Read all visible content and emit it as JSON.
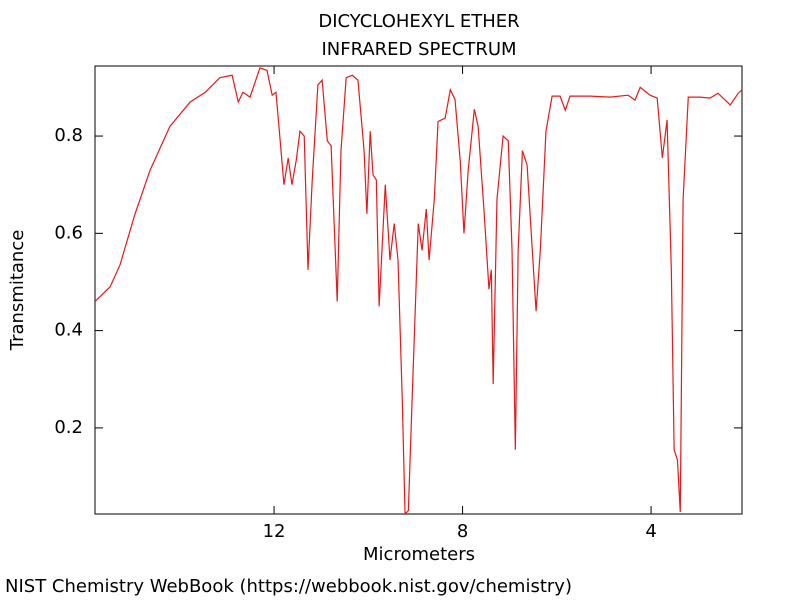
{
  "chart_data": {
    "type": "line",
    "title": "DICYCLOHEXYL ETHER",
    "subtitle": "INFRARED SPECTRUM",
    "x_label": "Micrometers",
    "y_label": "Transmitance",
    "source": "NIST Chemistry WebBook (https://webbook.nist.gov/chemistry)",
    "xlim": [
      15.8,
      2.07
    ],
    "ylim": [
      0.023,
      0.944
    ],
    "xticks": [
      12,
      8,
      4
    ],
    "yticks": [
      0.2,
      0.4,
      0.6,
      0.8
    ],
    "series": [
      {
        "color": "#e41a1c",
        "x": [
          15.8,
          15.48,
          15.27,
          14.95,
          14.63,
          14.21,
          13.78,
          13.46,
          13.15,
          12.89,
          12.76,
          12.66,
          12.51,
          12.3,
          12.15,
          12.04,
          11.96,
          11.87,
          11.79,
          11.7,
          11.62,
          11.53,
          11.45,
          11.36,
          11.28,
          11.19,
          11.07,
          10.98,
          10.87,
          10.79,
          10.66,
          10.58,
          10.47,
          10.34,
          10.22,
          10.09,
          10.03,
          9.96,
          9.9,
          9.83,
          9.77,
          9.64,
          9.54,
          9.45,
          9.37,
          9.28,
          9.22,
          9.15,
          9.07,
          8.94,
          8.86,
          8.77,
          8.71,
          8.6,
          8.52,
          8.37,
          8.26,
          8.16,
          8.05,
          7.97,
          7.88,
          7.75,
          7.67,
          7.54,
          7.44,
          7.39,
          7.35,
          7.27,
          7.14,
          7.03,
          6.95,
          6.88,
          6.82,
          6.73,
          6.63,
          6.52,
          6.44,
          6.35,
          6.23,
          6.1,
          5.93,
          5.82,
          5.72,
          5.29,
          4.87,
          4.49,
          4.34,
          4.23,
          4.02,
          3.87,
          3.76,
          3.66,
          3.57,
          3.51,
          3.44,
          3.38,
          3.32,
          3.21,
          2.96,
          2.75,
          2.58,
          2.32,
          2.15,
          2.07
        ],
        "values": [
          0.46,
          0.49,
          0.535,
          0.64,
          0.73,
          0.82,
          0.87,
          0.89,
          0.92,
          0.925,
          0.87,
          0.89,
          0.88,
          0.94,
          0.935,
          0.884,
          0.89,
          0.79,
          0.7,
          0.755,
          0.7,
          0.75,
          0.81,
          0.8,
          0.525,
          0.71,
          0.905,
          0.915,
          0.79,
          0.78,
          0.46,
          0.77,
          0.92,
          0.925,
          0.915,
          0.77,
          0.64,
          0.81,
          0.72,
          0.71,
          0.45,
          0.7,
          0.545,
          0.62,
          0.545,
          0.26,
          0.023,
          0.03,
          0.26,
          0.62,
          0.565,
          0.65,
          0.545,
          0.67,
          0.83,
          0.837,
          0.895,
          0.875,
          0.75,
          0.6,
          0.73,
          0.855,
          0.82,
          0.64,
          0.485,
          0.525,
          0.29,
          0.67,
          0.8,
          0.79,
          0.565,
          0.155,
          0.565,
          0.77,
          0.74,
          0.565,
          0.44,
          0.565,
          0.81,
          0.882,
          0.882,
          0.853,
          0.882,
          0.882,
          0.88,
          0.884,
          0.874,
          0.9,
          0.884,
          0.878,
          0.755,
          0.833,
          0.525,
          0.155,
          0.134,
          0.027,
          0.67,
          0.88,
          0.88,
          0.878,
          0.888,
          0.864,
          0.888,
          0.895
        ]
      }
    ]
  }
}
